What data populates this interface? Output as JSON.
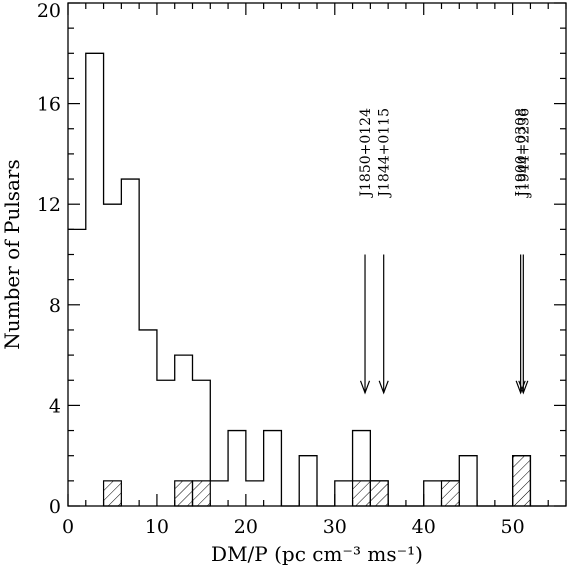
{
  "chart_data": {
    "type": "bar",
    "title": "",
    "xlabel": "DM/P (pc cm⁻³ ms⁻¹)",
    "ylabel": "Number of Pulsars",
    "xlim": [
      0,
      56
    ],
    "ylim": [
      0,
      20
    ],
    "x_ticks": [
      0,
      10,
      20,
      30,
      40,
      50
    ],
    "y_ticks": [
      0,
      4,
      8,
      12,
      16,
      20
    ],
    "grid": false,
    "legend": "none",
    "bin_width": 2,
    "bin_edges": [
      0,
      2,
      4,
      6,
      8,
      10,
      12,
      14,
      16,
      18,
      20,
      22,
      24,
      26,
      28,
      30,
      32,
      34,
      36,
      38,
      40,
      42,
      44,
      46,
      48,
      50,
      52,
      54
    ],
    "series": [
      {
        "style": "open-step",
        "values": [
          11,
          18,
          12,
          13,
          7,
          5,
          6,
          5,
          1,
          3,
          1,
          3,
          0,
          2,
          0,
          1,
          3,
          1,
          0,
          0,
          1,
          1,
          2,
          0,
          0,
          2,
          0
        ]
      },
      {
        "style": "hatched",
        "values": [
          0,
          0,
          1,
          0,
          0,
          0,
          1,
          1,
          0,
          0,
          0,
          0,
          0,
          0,
          0,
          0,
          1,
          1,
          0,
          0,
          0,
          1,
          0,
          0,
          0,
          2,
          0
        ]
      }
    ],
    "annotations": [
      {
        "label": "J1850+0124",
        "x": 33.4,
        "arrow_tip_y": 4.5,
        "arrow_top_y": 10
      },
      {
        "label": "J1844+0115",
        "x": 35.5,
        "arrow_tip_y": 4.5,
        "arrow_top_y": 10
      },
      {
        "label": "J1900+0308",
        "x": 50.9,
        "arrow_tip_y": 4.5,
        "arrow_top_y": 10
      },
      {
        "label": "J1944+2236",
        "x": 51.2,
        "arrow_tip_y": 4.5,
        "arrow_top_y": 10
      }
    ]
  }
}
